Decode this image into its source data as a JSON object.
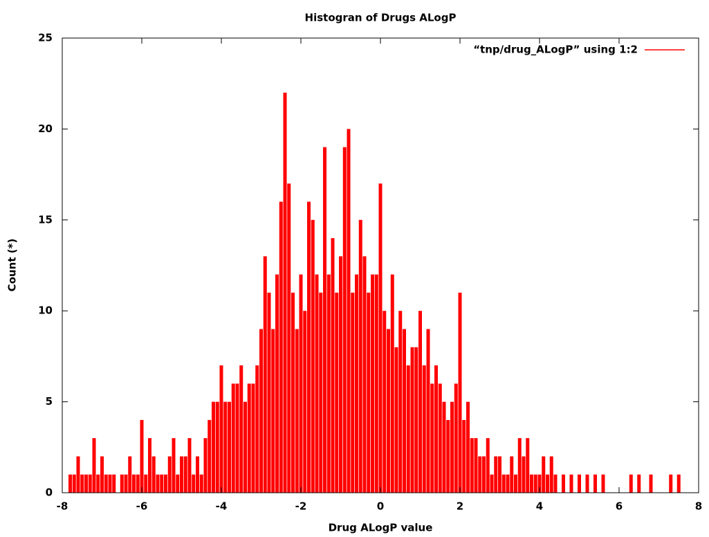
{
  "chart_data": {
    "type": "impulse",
    "title": "Histogran of  Drugs ALogP",
    "xlabel": "Drug  ALogP value",
    "ylabel": "Count (*)",
    "series": [
      {
        "name": "“tnp/drug_ALogP”  using   1:2",
        "color": "#ff0000",
        "x": [
          -7.8,
          -7.7,
          -7.6,
          -7.5,
          -7.4,
          -7.3,
          -7.2,
          -7.1,
          -7.0,
          -6.9,
          -6.8,
          -6.7,
          -6.6,
          -6.5,
          -6.4,
          -6.3,
          -6.2,
          -6.1,
          -6.0,
          -5.9,
          -5.8,
          -5.7,
          -5.6,
          -5.5,
          -5.4,
          -5.3,
          -5.2,
          -5.1,
          -5.0,
          -4.9,
          -4.8,
          -4.7,
          -4.6,
          -4.5,
          -4.4,
          -4.3,
          -4.2,
          -4.1,
          -4.0,
          -3.9,
          -3.8,
          -3.7,
          -3.6,
          -3.5,
          -3.4,
          -3.3,
          -3.2,
          -3.1,
          -3.0,
          -2.9,
          -2.8,
          -2.7,
          -2.6,
          -2.5,
          -2.4,
          -2.3,
          -2.2,
          -2.1,
          -2.0,
          -1.9,
          -1.8,
          -1.7,
          -1.6,
          -1.5,
          -1.4,
          -1.3,
          -1.2,
          -1.1,
          -1.0,
          -0.9,
          -0.8,
          -0.7,
          -0.6,
          -0.5,
          -0.4,
          -0.3,
          -0.2,
          -0.1,
          0.0,
          0.1,
          0.2,
          0.3,
          0.4,
          0.5,
          0.6,
          0.7,
          0.8,
          0.9,
          1.0,
          1.1,
          1.2,
          1.3,
          1.4,
          1.5,
          1.6,
          1.7,
          1.8,
          1.9,
          2.0,
          2.1,
          2.2,
          2.3,
          2.4,
          2.5,
          2.6,
          2.7,
          2.8,
          2.9,
          3.0,
          3.1,
          3.2,
          3.3,
          3.4,
          3.5,
          3.6,
          3.7,
          3.8,
          3.9,
          4.0,
          4.1,
          4.2,
          4.3,
          4.4,
          4.6,
          4.8,
          5.0,
          5.2,
          5.4,
          5.6,
          6.3,
          6.5,
          6.8,
          7.3,
          7.5
        ],
        "values": [
          1,
          1,
          2,
          1,
          1,
          1,
          3,
          1,
          2,
          1,
          1,
          1,
          0,
          1,
          1,
          2,
          1,
          1,
          4,
          1,
          3,
          2,
          1,
          1,
          1,
          2,
          3,
          1,
          2,
          2,
          3,
          1,
          2,
          1,
          3,
          4,
          5,
          5,
          7,
          5,
          5,
          6,
          6,
          7,
          5,
          6,
          6,
          7,
          9,
          13,
          11,
          9,
          12,
          16,
          22,
          17,
          11,
          9,
          12,
          10,
          16,
          15,
          12,
          11,
          19,
          12,
          14,
          11,
          13,
          19,
          20,
          11,
          12,
          15,
          13,
          11,
          12,
          12,
          17,
          10,
          9,
          12,
          8,
          10,
          9,
          7,
          8,
          8,
          10,
          7,
          9,
          6,
          7,
          6,
          5,
          4,
          5,
          6,
          11,
          4,
          5,
          3,
          3,
          2,
          2,
          3,
          1,
          2,
          2,
          1,
          1,
          2,
          1,
          3,
          2,
          3,
          1,
          1,
          1,
          2,
          1,
          2,
          1,
          1,
          1,
          1,
          1,
          1,
          1,
          1,
          1,
          1,
          1,
          1
        ]
      }
    ],
    "xlim": [
      -8,
      8
    ],
    "xticks": [
      -8,
      -6,
      -4,
      -2,
      0,
      2,
      4,
      6,
      8
    ],
    "ylim": [
      0,
      25
    ],
    "yticks": [
      0,
      5,
      10,
      15,
      20,
      25
    ],
    "legend": "top-right"
  }
}
